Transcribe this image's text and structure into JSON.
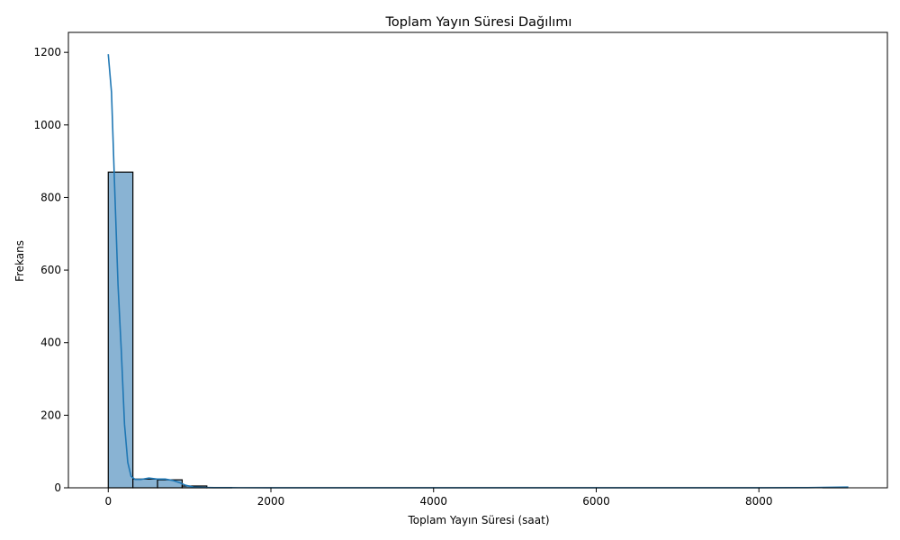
{
  "chart_data": {
    "type": "bar",
    "subtype": "histogram-with-kde",
    "title": "Toplam Yayın Süresi Dağılımı",
    "xlabel": "Toplam Yayın Süresi (saat)",
    "ylabel": "Frekans",
    "xlim": [
      -490,
      9580
    ],
    "ylim": [
      0,
      1255
    ],
    "xticks": [
      0,
      2000,
      4000,
      6000,
      8000
    ],
    "yticks": [
      0,
      200,
      400,
      600,
      800,
      1000,
      1200
    ],
    "bin_width": 303,
    "bins": [
      {
        "start": 0,
        "end": 303,
        "count": 870
      },
      {
        "start": 303,
        "end": 606,
        "count": 24
      },
      {
        "start": 606,
        "end": 909,
        "count": 22
      },
      {
        "start": 909,
        "end": 1212,
        "count": 5
      },
      {
        "start": 1212,
        "end": 1515,
        "count": 1
      },
      {
        "start": 1515,
        "end": 1818,
        "count": 0
      },
      {
        "start": 8787,
        "end": 9090,
        "count": 1
      }
    ],
    "kde": {
      "x": [
        0,
        40,
        80,
        120,
        160,
        200,
        240,
        280,
        330,
        400,
        500,
        600,
        700,
        800,
        880,
        950,
        1050,
        1150,
        1300,
        1600,
        2000,
        3000,
        4000,
        5000,
        6000,
        7000,
        8000,
        8600,
        8900,
        9100
      ],
      "y": [
        1195,
        1090,
        820,
        560,
        380,
        175,
        70,
        32,
        23,
        23,
        27,
        24,
        24,
        20,
        14,
        7,
        2,
        1,
        0.5,
        0.3,
        0.2,
        0.1,
        0.1,
        0.1,
        0.1,
        0.1,
        0.2,
        0.4,
        1.5,
        2
      ]
    },
    "colors": {
      "bar_fill": "#89b3d3",
      "bar_edge": "#000000",
      "kde_line": "#1f77b4"
    },
    "grid": false,
    "legend": "none"
  }
}
